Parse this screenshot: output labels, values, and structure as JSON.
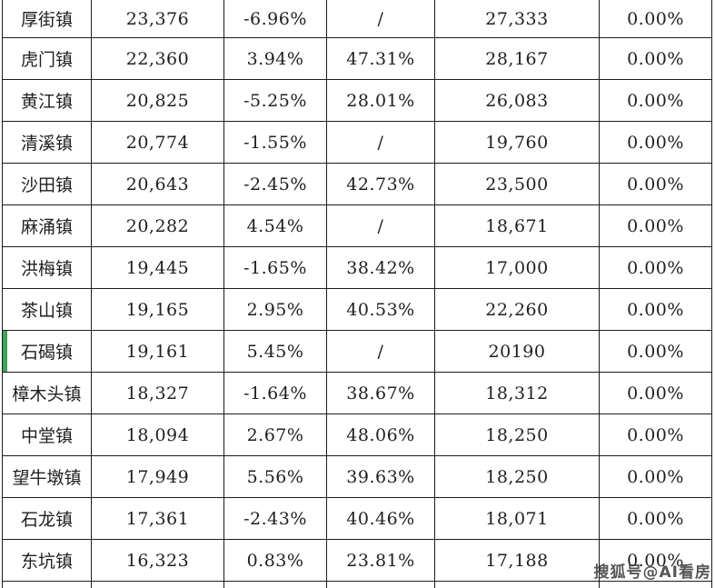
{
  "palette": {
    "green": "#2ebe7e",
    "red": "#df2d26",
    "text": "#1f1f1f",
    "border": "#1c1c1c",
    "highlight_green": "#3ea45a",
    "watermark_color": "#3f3f3f"
  },
  "watermark": {
    "text": "搜狐号@AI看房"
  },
  "table": {
    "rows": [
      {
        "town": "厚街镇",
        "value1": "23,376",
        "pct1": "-6.96%",
        "pct1_color": "green",
        "pct2": "/",
        "pct2_color": "dark",
        "value2": "27,333",
        "pct3": "0.00%",
        "highlighted": false
      },
      {
        "town": "虎门镇",
        "value1": "22,360",
        "pct1": "3.94%",
        "pct1_color": "red",
        "pct2": "47.31%",
        "pct2_color": "red",
        "value2": "28,167",
        "pct3": "0.00%",
        "highlighted": false
      },
      {
        "town": "黄江镇",
        "value1": "20,825",
        "pct1": "-5.25%",
        "pct1_color": "green",
        "pct2": "28.01%",
        "pct2_color": "red",
        "value2": "26,083",
        "pct3": "0.00%",
        "highlighted": false
      },
      {
        "town": "清溪镇",
        "value1": "20,774",
        "pct1": "-1.55%",
        "pct1_color": "green",
        "pct2": "/",
        "pct2_color": "dark",
        "value2": "19,760",
        "pct3": "0.00%",
        "highlighted": false
      },
      {
        "town": "沙田镇",
        "value1": "20,643",
        "pct1": "-2.45%",
        "pct1_color": "green",
        "pct2": "42.73%",
        "pct2_color": "red",
        "value2": "23,500",
        "pct3": "0.00%",
        "highlighted": false
      },
      {
        "town": "麻涌镇",
        "value1": "20,282",
        "pct1": "4.54%",
        "pct1_color": "red",
        "pct2": "/",
        "pct2_color": "dark",
        "value2": "18,671",
        "pct3": "0.00%",
        "highlighted": false
      },
      {
        "town": "洪梅镇",
        "value1": "19,445",
        "pct1": "-1.65%",
        "pct1_color": "green",
        "pct2": "38.42%",
        "pct2_color": "red",
        "value2": "17,000",
        "pct3": "0.00%",
        "highlighted": false
      },
      {
        "town": "茶山镇",
        "value1": "19,165",
        "pct1": "2.95%",
        "pct1_color": "red",
        "pct2": "40.53%",
        "pct2_color": "red",
        "value2": "22,260",
        "pct3": "0.00%",
        "highlighted": false
      },
      {
        "town": "石碣镇",
        "value1": "19,161",
        "pct1": "5.45%",
        "pct1_color": "red",
        "pct2": "/",
        "pct2_color": "dark",
        "value2": "20190",
        "pct3": "0.00%",
        "highlighted": true
      },
      {
        "town": "樟木头镇",
        "value1": "18,327",
        "pct1": "-1.64%",
        "pct1_color": "green",
        "pct2": "38.67%",
        "pct2_color": "red",
        "value2": "18,312",
        "pct3": "0.00%",
        "highlighted": false
      },
      {
        "town": "中堂镇",
        "value1": "18,094",
        "pct1": "2.67%",
        "pct1_color": "red",
        "pct2": "48.06%",
        "pct2_color": "red",
        "value2": "18,250",
        "pct3": "0.00%",
        "highlighted": false
      },
      {
        "town": "望牛墩镇",
        "value1": "17,949",
        "pct1": "5.56%",
        "pct1_color": "red",
        "pct2": "39.63%",
        "pct2_color": "red",
        "value2": "18,250",
        "pct3": "0.00%",
        "highlighted": false
      },
      {
        "town": "石龙镇",
        "value1": "17,361",
        "pct1": "-2.43%",
        "pct1_color": "green",
        "pct2": "40.46%",
        "pct2_color": "red",
        "value2": "18,071",
        "pct3": "0.00%",
        "highlighted": false
      },
      {
        "town": "东坑镇",
        "value1": "16,323",
        "pct1": "0.83%",
        "pct1_color": "red",
        "pct2": "23.81%",
        "pct2_color": "red",
        "value2": "17,188",
        "pct3": "0.00%",
        "highlighted": false
      }
    ]
  }
}
